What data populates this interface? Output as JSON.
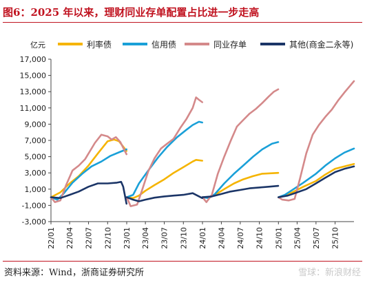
{
  "title": {
    "label": "图6：",
    "text": "2025 年以来，理财同业存单配置占比进一步走高"
  },
  "footer": {
    "source": "资料来源：Wind，浙商证券研究所",
    "watermark": "雪球：新浪财经"
  },
  "colors": {
    "title": "#c0121f",
    "series": [
      "#f5b400",
      "#1aa0d8",
      "#d4898a",
      "#1b3567"
    ]
  },
  "chart_data": {
    "type": "line",
    "ylabel": "亿元",
    "ylim": [
      -3000,
      17000
    ],
    "yticks": [
      -3000,
      -1000,
      1000,
      3000,
      5000,
      7000,
      9000,
      11000,
      13000,
      15000,
      17000
    ],
    "ytick_labels": [
      "-3,000",
      "-1,000",
      "1,000",
      "3,000",
      "5,000",
      "7,000",
      "9,000",
      "11,000",
      "13,000",
      "15,000",
      "17,000"
    ],
    "xrange": [
      "2022-01-01",
      "2025-12-31"
    ],
    "xticks": [
      "2022-01-01",
      "2022-04-01",
      "2022-07-01",
      "2022-10-01",
      "2023-01-01",
      "2023-04-01",
      "2023-07-01",
      "2023-10-01",
      "2024-01-01",
      "2024-04-01",
      "2024-07-01",
      "2024-10-01",
      "2025-01-01",
      "2025-04-01",
      "2025-07-01",
      "2025-10-01"
    ],
    "xtick_labels": [
      "22/01",
      "22/04",
      "22/07",
      "22/10",
      "23/01",
      "23/04",
      "23/07",
      "23/10",
      "24/01",
      "24/04",
      "24/07",
      "24/10",
      "25/01",
      "25/04",
      "25/07",
      "25/10"
    ],
    "legend": "top",
    "grid": false,
    "series": [
      {
        "name": "利率债",
        "color": "#f5b400",
        "segments": [
          [
            [
              "2022-01-01",
              0
            ],
            [
              "2022-02-15",
              600
            ],
            [
              "2022-04-01",
              1700
            ],
            [
              "2022-05-15",
              2600
            ],
            [
              "2022-07-01",
              3900
            ],
            [
              "2022-08-15",
              5400
            ],
            [
              "2022-10-01",
              6900
            ],
            [
              "2022-11-01",
              7100
            ],
            [
              "2022-11-25",
              6900
            ],
            [
              "2022-12-31",
              5700
            ]
          ],
          [
            [
              "2023-01-01",
              0
            ],
            [
              "2023-02-01",
              -100
            ],
            [
              "2023-03-01",
              200
            ],
            [
              "2023-04-01",
              800
            ],
            [
              "2023-05-15",
              1500
            ],
            [
              "2023-07-01",
              2200
            ],
            [
              "2023-08-15",
              3000
            ],
            [
              "2023-10-01",
              3700
            ],
            [
              "2023-11-15",
              4400
            ],
            [
              "2023-12-01",
              4600
            ],
            [
              "2023-12-31",
              4500
            ]
          ],
          [
            [
              "2024-01-01",
              0
            ],
            [
              "2024-02-01",
              -50
            ],
            [
              "2024-03-01",
              300
            ],
            [
              "2024-04-15",
              1000
            ],
            [
              "2024-06-01",
              1700
            ],
            [
              "2024-07-15",
              2200
            ],
            [
              "2024-09-01",
              2600
            ],
            [
              "2024-10-15",
              2900
            ],
            [
              "2024-12-31",
              3000
            ]
          ],
          [
            [
              "2025-01-01",
              0
            ],
            [
              "2025-02-01",
              200
            ],
            [
              "2025-03-01",
              500
            ],
            [
              "2025-05-01",
              1300
            ],
            [
              "2025-07-01",
              2000
            ],
            [
              "2025-08-15",
              2800
            ],
            [
              "2025-10-01",
              3500
            ],
            [
              "2025-12-31",
              4100
            ]
          ]
        ]
      },
      {
        "name": "信用债",
        "color": "#1aa0d8",
        "segments": [
          [
            [
              "2022-01-01",
              0
            ],
            [
              "2022-02-01",
              -300
            ],
            [
              "2022-03-01",
              400
            ],
            [
              "2022-04-15",
              1800
            ],
            [
              "2022-06-01",
              2900
            ],
            [
              "2022-07-15",
              3800
            ],
            [
              "2022-09-01",
              4400
            ],
            [
              "2022-10-15",
              5100
            ],
            [
              "2022-12-01",
              5600
            ],
            [
              "2022-12-31",
              5900
            ]
          ],
          [
            [
              "2023-01-01",
              0
            ],
            [
              "2023-02-01",
              300
            ],
            [
              "2023-03-01",
              1700
            ],
            [
              "2023-04-15",
              3300
            ],
            [
              "2023-06-01",
              4900
            ],
            [
              "2023-07-15",
              6200
            ],
            [
              "2023-09-01",
              7400
            ],
            [
              "2023-10-15",
              8300
            ],
            [
              "2023-11-15",
              8900
            ],
            [
              "2023-12-15",
              9300
            ],
            [
              "2023-12-31",
              9200
            ]
          ],
          [
            [
              "2024-01-01",
              0
            ],
            [
              "2024-02-01",
              -100
            ],
            [
              "2024-03-01",
              400
            ],
            [
              "2024-04-15",
              1700
            ],
            [
              "2024-06-01",
              2900
            ],
            [
              "2024-07-15",
              3900
            ],
            [
              "2024-09-01",
              5000
            ],
            [
              "2024-10-15",
              5900
            ],
            [
              "2024-12-01",
              6600
            ],
            [
              "2024-12-31",
              6800
            ]
          ],
          [
            [
              "2025-01-01",
              0
            ],
            [
              "2025-02-01",
              300
            ],
            [
              "2025-03-15",
              1000
            ],
            [
              "2025-05-01",
              1800
            ],
            [
              "2025-07-01",
              2900
            ],
            [
              "2025-08-15",
              3900
            ],
            [
              "2025-10-01",
              4800
            ],
            [
              "2025-11-15",
              5500
            ],
            [
              "2025-12-31",
              6000
            ]
          ]
        ]
      },
      {
        "name": "同业存单",
        "color": "#d4898a",
        "segments": [
          [
            [
              "2022-01-01",
              0
            ],
            [
              "2022-01-20",
              -600
            ],
            [
              "2022-02-15",
              -400
            ],
            [
              "2022-03-15",
              1500
            ],
            [
              "2022-04-15",
              3300
            ],
            [
              "2022-05-15",
              3900
            ],
            [
              "2022-06-15",
              4700
            ],
            [
              "2022-08-01",
              6700
            ],
            [
              "2022-09-01",
              7700
            ],
            [
              "2022-10-01",
              7500
            ],
            [
              "2022-10-20",
              7100
            ],
            [
              "2022-11-10",
              7400
            ],
            [
              "2022-12-01",
              6800
            ],
            [
              "2022-12-31",
              5300
            ]
          ],
          [
            [
              "2023-01-01",
              0
            ],
            [
              "2023-01-20",
              -1100
            ],
            [
              "2023-02-20",
              -900
            ],
            [
              "2023-03-15",
              800
            ],
            [
              "2023-04-15",
              3200
            ],
            [
              "2023-05-15",
              4800
            ],
            [
              "2023-06-15",
              6000
            ],
            [
              "2023-07-15",
              6600
            ],
            [
              "2023-08-15",
              7200
            ],
            [
              "2023-09-15",
              8500
            ],
            [
              "2023-10-15",
              9600
            ],
            [
              "2023-11-15",
              11000
            ],
            [
              "2023-12-01",
              12300
            ],
            [
              "2023-12-15",
              12000
            ],
            [
              "2023-12-31",
              11700
            ]
          ],
          [
            [
              "2024-01-01",
              0
            ],
            [
              "2024-01-20",
              -600
            ],
            [
              "2024-02-15",
              300
            ],
            [
              "2024-03-15",
              2900
            ],
            [
              "2024-04-15",
              5000
            ],
            [
              "2024-05-15",
              6900
            ],
            [
              "2024-06-15",
              8700
            ],
            [
              "2024-07-15",
              9500
            ],
            [
              "2024-08-15",
              10300
            ],
            [
              "2024-09-15",
              10900
            ],
            [
              "2024-10-15",
              11600
            ],
            [
              "2024-11-15",
              12400
            ],
            [
              "2024-12-10",
              13000
            ],
            [
              "2024-12-31",
              13300
            ]
          ],
          [
            [
              "2025-01-01",
              0
            ],
            [
              "2025-01-20",
              -300
            ],
            [
              "2025-02-20",
              -400
            ],
            [
              "2025-03-20",
              -200
            ],
            [
              "2025-04-15",
              2300
            ],
            [
              "2025-05-15",
              5400
            ],
            [
              "2025-06-15",
              7700
            ],
            [
              "2025-07-15",
              8900
            ],
            [
              "2025-08-15",
              9900
            ],
            [
              "2025-09-15",
              10800
            ],
            [
              "2025-10-15",
              11900
            ],
            [
              "2025-11-15",
              12900
            ],
            [
              "2025-12-31",
              14300
            ]
          ]
        ]
      },
      {
        "name": "其他(商金二永等)",
        "color": "#1b3567",
        "segments": [
          [
            [
              "2022-01-01",
              0
            ],
            [
              "2022-02-15",
              -100
            ],
            [
              "2022-04-01",
              300
            ],
            [
              "2022-05-15",
              700
            ],
            [
              "2022-07-01",
              1300
            ],
            [
              "2022-08-15",
              1700
            ],
            [
              "2022-10-01",
              1700
            ],
            [
              "2022-11-15",
              1800
            ],
            [
              "2022-12-05",
              1900
            ],
            [
              "2022-12-15",
              1300
            ],
            [
              "2022-12-31",
              -800
            ]
          ],
          [
            [
              "2023-01-01",
              0
            ],
            [
              "2023-02-01",
              -300
            ],
            [
              "2023-03-01",
              -500
            ],
            [
              "2023-04-01",
              -300
            ],
            [
              "2023-05-15",
              -50
            ],
            [
              "2023-07-01",
              100
            ],
            [
              "2023-08-15",
              200
            ],
            [
              "2023-10-01",
              300
            ],
            [
              "2023-11-15",
              500
            ],
            [
              "2023-12-31",
              -100
            ]
          ],
          [
            [
              "2024-01-01",
              0
            ],
            [
              "2024-02-15",
              100
            ],
            [
              "2024-04-01",
              400
            ],
            [
              "2024-05-15",
              700
            ],
            [
              "2024-07-01",
              900
            ],
            [
              "2024-08-15",
              1100
            ],
            [
              "2024-10-01",
              1200
            ],
            [
              "2024-11-15",
              1300
            ],
            [
              "2024-12-31",
              1400
            ]
          ],
          [
            [
              "2025-01-01",
              0
            ],
            [
              "2025-02-15",
              200
            ],
            [
              "2025-04-01",
              600
            ],
            [
              "2025-05-15",
              1000
            ],
            [
              "2025-07-01",
              1700
            ],
            [
              "2025-08-15",
              2400
            ],
            [
              "2025-10-01",
              3100
            ],
            [
              "2025-11-15",
              3500
            ],
            [
              "2025-12-31",
              3800
            ]
          ]
        ]
      }
    ]
  }
}
